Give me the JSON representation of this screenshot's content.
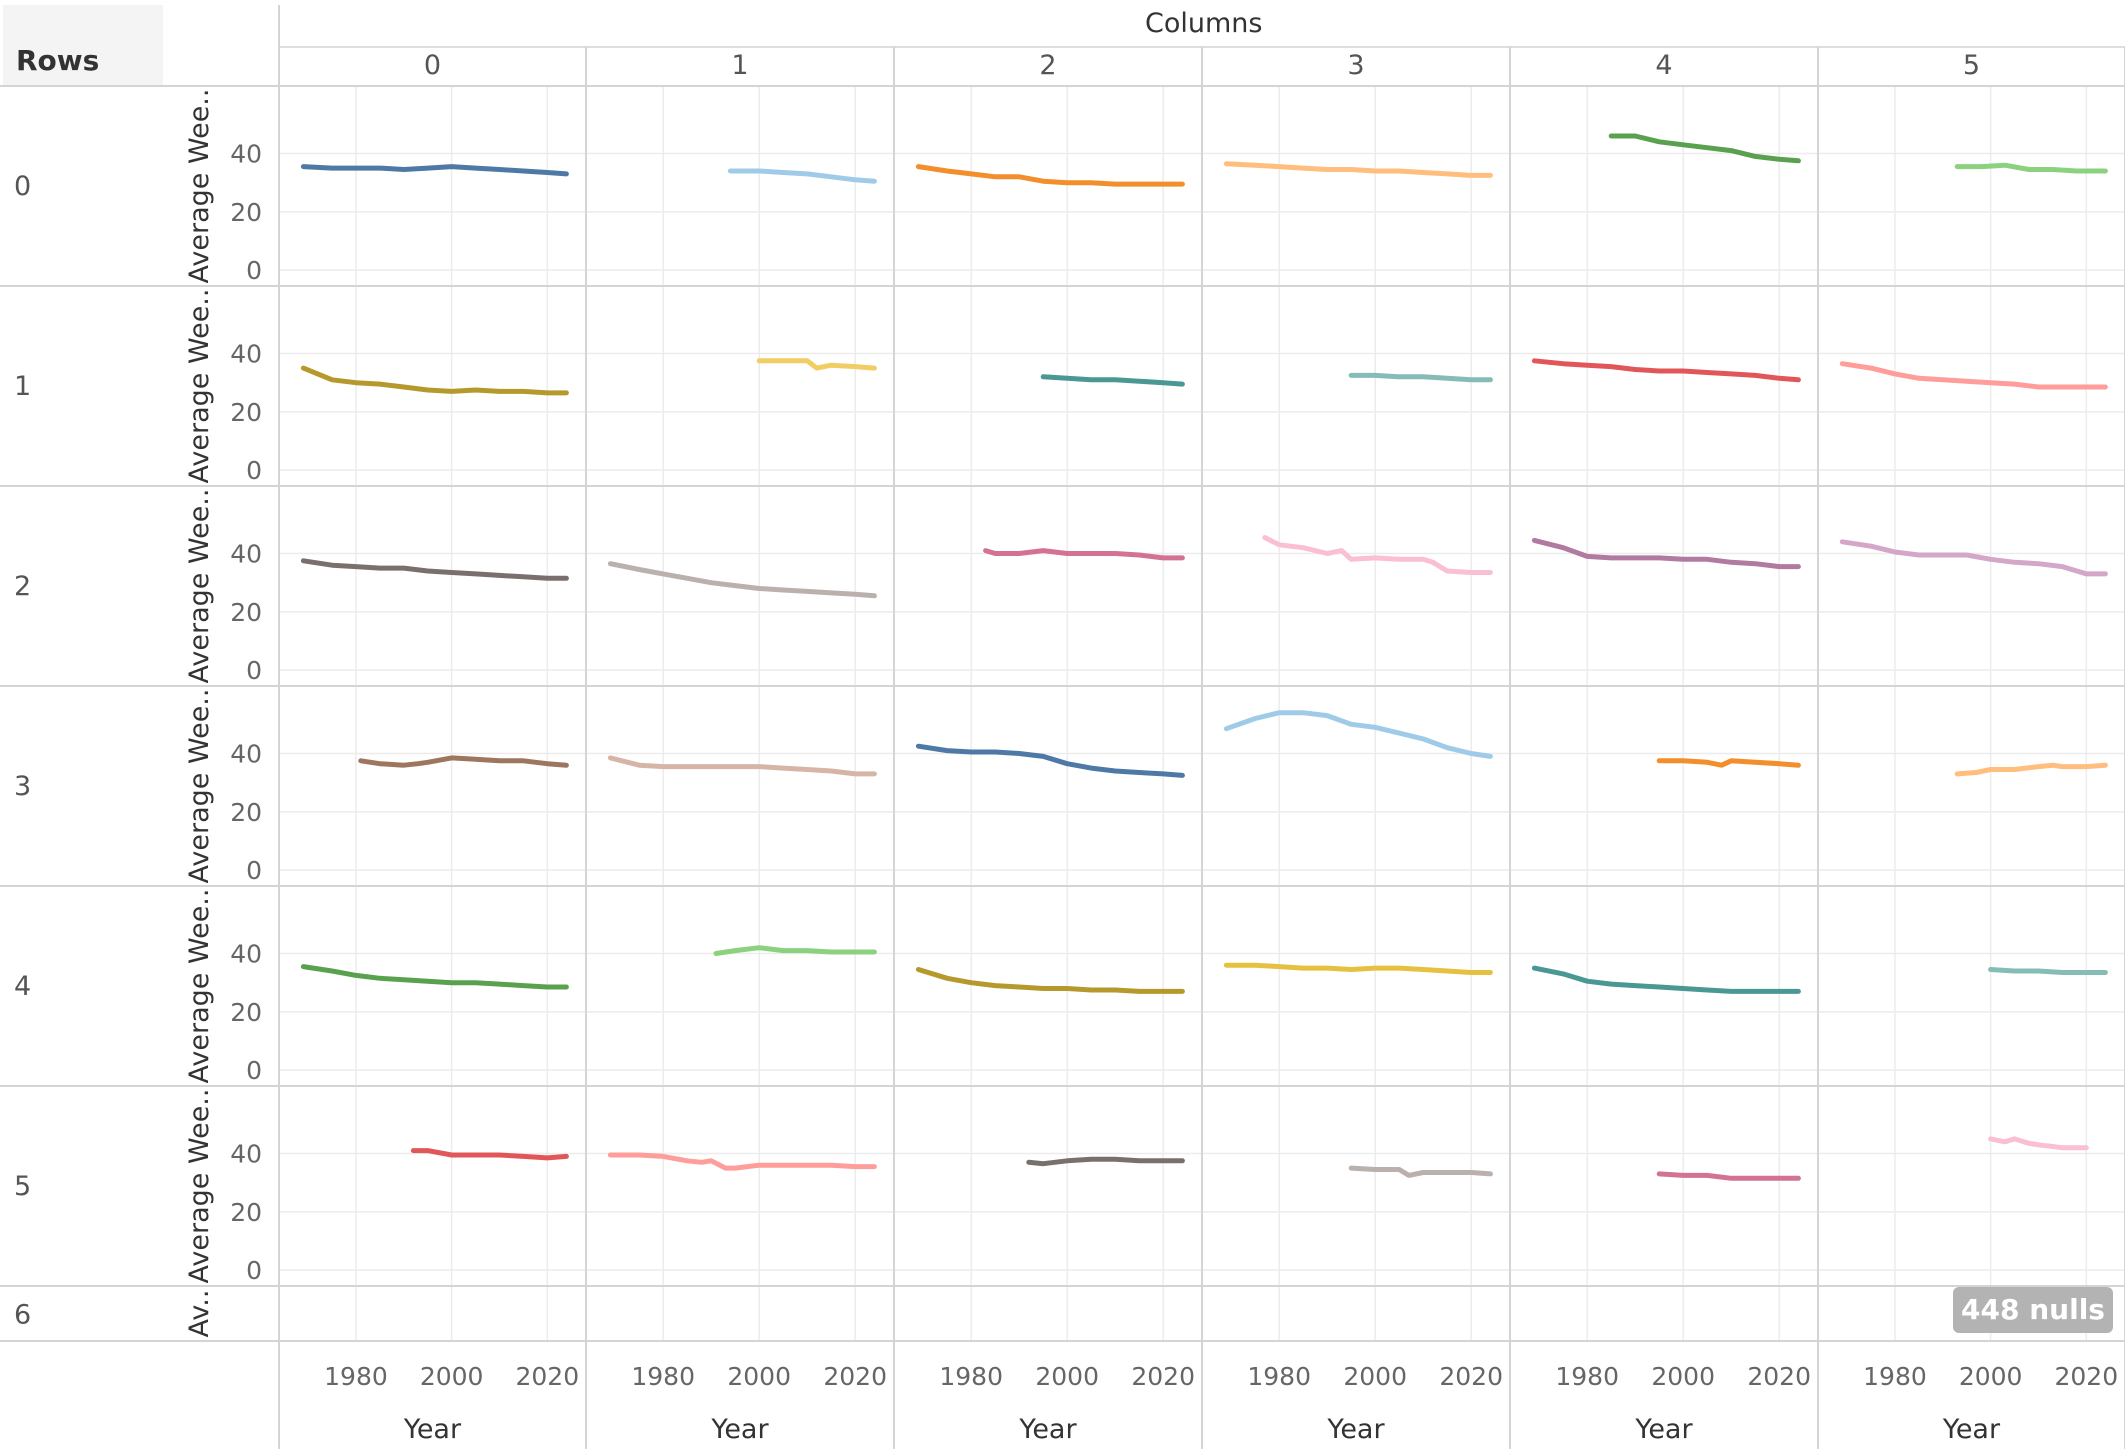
{
  "header": {
    "rows_label": "Rows",
    "columns_label": "Columns"
  },
  "nulls_indicator": "448 nulls",
  "chart_data": {
    "type": "line",
    "layout": "small-multiples",
    "row_labels": [
      "0",
      "1",
      "2",
      "3",
      "4",
      "5",
      "6"
    ],
    "column_labels": [
      "0",
      "1",
      "2",
      "3",
      "4",
      "5"
    ],
    "xlabel": "Year",
    "ylabel": "Average Wee..",
    "ylabel_truncated": "Av..",
    "xticks": [
      1980,
      2000,
      2020
    ],
    "xlim": [
      1966,
      2026
    ],
    "yticks": [
      0,
      20,
      40
    ],
    "ylim": [
      -2,
      58
    ],
    "grid": true,
    "panels": [
      {
        "row": 0,
        "col": 0,
        "color": "#4e79a7",
        "x": [
          1969,
          1975,
          1980,
          1985,
          1990,
          1995,
          2000,
          2005,
          2010,
          2015,
          2020,
          2024
        ],
        "y": [
          35.5,
          35,
          35,
          35,
          34.5,
          35,
          35.5,
          35,
          34.5,
          34,
          33.5,
          33
        ]
      },
      {
        "row": 0,
        "col": 1,
        "color": "#a0cbe8",
        "x": [
          1994,
          2000,
          2005,
          2010,
          2015,
          2020,
          2024
        ],
        "y": [
          34,
          34,
          33.5,
          33,
          32,
          31,
          30.5
        ]
      },
      {
        "row": 0,
        "col": 2,
        "color": "#f28e2b",
        "x": [
          1969,
          1975,
          1980,
          1985,
          1990,
          1995,
          2000,
          2005,
          2010,
          2015,
          2020,
          2024
        ],
        "y": [
          35.5,
          34,
          33,
          32,
          32,
          30.5,
          30,
          30,
          29.5,
          29.5,
          29.5,
          29.5
        ]
      },
      {
        "row": 0,
        "col": 3,
        "color": "#ffbe7d",
        "x": [
          1969,
          1975,
          1980,
          1985,
          1990,
          1995,
          2000,
          2005,
          2010,
          2015,
          2020,
          2024
        ],
        "y": [
          36.5,
          36,
          35.5,
          35,
          34.5,
          34.5,
          34,
          34,
          33.5,
          33,
          32.5,
          32.5
        ]
      },
      {
        "row": 0,
        "col": 4,
        "color": "#59a14f",
        "x": [
          1985,
          1990,
          1995,
          2000,
          2005,
          2010,
          2015,
          2020,
          2024
        ],
        "y": [
          46,
          46,
          44,
          43,
          42,
          41,
          39,
          38,
          37.5
        ]
      },
      {
        "row": 0,
        "col": 5,
        "color": "#8cd17d",
        "x": [
          1993,
          1998,
          2003,
          2008,
          2013,
          2018,
          2024
        ],
        "y": [
          35.5,
          35.5,
          36,
          34.5,
          34.5,
          34,
          34
        ]
      },
      {
        "row": 1,
        "col": 0,
        "color": "#b6992d",
        "x": [
          1969,
          1972,
          1975,
          1980,
          1985,
          1990,
          1995,
          2000,
          2005,
          2010,
          2015,
          2020,
          2024
        ],
        "y": [
          35,
          33,
          31,
          30,
          29.5,
          28.5,
          27.5,
          27,
          27.5,
          27,
          27,
          26.5,
          26.5
        ]
      },
      {
        "row": 1,
        "col": 1,
        "color": "#f1ce63",
        "x": [
          2000,
          2005,
          2010,
          2012,
          2015,
          2020,
          2024
        ],
        "y": [
          37.5,
          37.5,
          37.5,
          35,
          36,
          35.5,
          35
        ]
      },
      {
        "row": 1,
        "col": 2,
        "color": "#499894",
        "x": [
          1995,
          2000,
          2005,
          2010,
          2015,
          2020,
          2024
        ],
        "y": [
          32,
          31.5,
          31,
          31,
          30.5,
          30,
          29.5
        ]
      },
      {
        "row": 1,
        "col": 3,
        "color": "#86bcb6",
        "x": [
          1995,
          2000,
          2005,
          2010,
          2015,
          2020,
          2024
        ],
        "y": [
          32.5,
          32.5,
          32,
          32,
          31.5,
          31,
          31
        ]
      },
      {
        "row": 1,
        "col": 4,
        "color": "#e15759",
        "x": [
          1969,
          1975,
          1980,
          1985,
          1990,
          1995,
          2000,
          2005,
          2010,
          2015,
          2020,
          2024
        ],
        "y": [
          37.5,
          36.5,
          36,
          35.5,
          34.5,
          34,
          34,
          33.5,
          33,
          32.5,
          31.5,
          31
        ]
      },
      {
        "row": 1,
        "col": 5,
        "color": "#ff9d9a",
        "x": [
          1969,
          1975,
          1980,
          1985,
          1990,
          1995,
          2000,
          2005,
          2010,
          2015,
          2020,
          2024
        ],
        "y": [
          36.5,
          35,
          33,
          31.5,
          31,
          30.5,
          30,
          29.5,
          28.5,
          28.5,
          28.5,
          28.5
        ]
      },
      {
        "row": 2,
        "col": 0,
        "color": "#79706e",
        "x": [
          1969,
          1975,
          1980,
          1985,
          1990,
          1995,
          2000,
          2005,
          2010,
          2015,
          2020,
          2024
        ],
        "y": [
          37.5,
          36,
          35.5,
          35,
          35,
          34,
          33.5,
          33,
          32.5,
          32,
          31.5,
          31.5
        ]
      },
      {
        "row": 2,
        "col": 1,
        "color": "#bab0ac",
        "x": [
          1969,
          1975,
          1980,
          1985,
          1990,
          1995,
          2000,
          2005,
          2010,
          2015,
          2020,
          2024
        ],
        "y": [
          36.5,
          34.5,
          33,
          31.5,
          30,
          29,
          28,
          27.5,
          27,
          26.5,
          26,
          25.5
        ]
      },
      {
        "row": 2,
        "col": 2,
        "color": "#d37295",
        "x": [
          1983,
          1985,
          1990,
          1995,
          2000,
          2005,
          2010,
          2015,
          2020,
          2024
        ],
        "y": [
          41,
          40,
          40,
          41,
          40,
          40,
          40,
          39.5,
          38.5,
          38.5
        ]
      },
      {
        "row": 2,
        "col": 3,
        "color": "#fabfd2",
        "x": [
          1977,
          1980,
          1985,
          1990,
          1993,
          1995,
          2000,
          2005,
          2010,
          2012,
          2015,
          2020,
          2024
        ],
        "y": [
          45.5,
          43,
          42,
          40,
          41,
          38,
          38.5,
          38,
          38,
          37,
          34,
          33.5,
          33.5
        ]
      },
      {
        "row": 2,
        "col": 4,
        "color": "#b07aa1",
        "x": [
          1969,
          1975,
          1980,
          1985,
          1990,
          1995,
          2000,
          2005,
          2010,
          2015,
          2020,
          2024
        ],
        "y": [
          44.5,
          42,
          39,
          38.5,
          38.5,
          38.5,
          38,
          38,
          37,
          36.5,
          35.5,
          35.5
        ]
      },
      {
        "row": 2,
        "col": 5,
        "color": "#d4a6c8",
        "x": [
          1969,
          1975,
          1980,
          1985,
          1990,
          1995,
          2000,
          2005,
          2010,
          2015,
          2020,
          2024
        ],
        "y": [
          44,
          42.5,
          40.5,
          39.5,
          39.5,
          39.5,
          38,
          37,
          36.5,
          35.5,
          33,
          33
        ]
      },
      {
        "row": 3,
        "col": 0,
        "color": "#9d7660",
        "x": [
          1981,
          1985,
          1990,
          1993,
          1995,
          2000,
          2005,
          2010,
          2015,
          2020,
          2024
        ],
        "y": [
          37.5,
          36.5,
          36,
          36.5,
          37,
          38.5,
          38,
          37.5,
          37.5,
          36.5,
          36
        ]
      },
      {
        "row": 3,
        "col": 1,
        "color": "#d7b5a6",
        "x": [
          1969,
          1975,
          1980,
          1985,
          1990,
          1995,
          2000,
          2005,
          2010,
          2015,
          2020,
          2024
        ],
        "y": [
          38.5,
          36,
          35.5,
          35.5,
          35.5,
          35.5,
          35.5,
          35,
          34.5,
          34,
          33,
          33
        ]
      },
      {
        "row": 3,
        "col": 2,
        "color": "#4e79a7",
        "x": [
          1969,
          1975,
          1980,
          1985,
          1990,
          1995,
          2000,
          2005,
          2010,
          2015,
          2020,
          2024
        ],
        "y": [
          42.5,
          41,
          40.5,
          40.5,
          40,
          39,
          36.5,
          35,
          34,
          33.5,
          33,
          32.5
        ]
      },
      {
        "row": 3,
        "col": 3,
        "color": "#a0cbe8",
        "x": [
          1969,
          1975,
          1980,
          1985,
          1990,
          1995,
          2000,
          2005,
          2010,
          2015,
          2020,
          2024
        ],
        "y": [
          48.5,
          52,
          54,
          54,
          53,
          50,
          49,
          47,
          45,
          42,
          40,
          39
        ]
      },
      {
        "row": 3,
        "col": 4,
        "color": "#f28e2b",
        "x": [
          1995,
          2000,
          2005,
          2008,
          2010,
          2015,
          2020,
          2024
        ],
        "y": [
          37.5,
          37.5,
          37,
          36,
          37.5,
          37,
          36.5,
          36
        ]
      },
      {
        "row": 3,
        "col": 5,
        "color": "#ffbe7d",
        "x": [
          1993,
          1997,
          2000,
          2005,
          2010,
          2013,
          2015,
          2020,
          2024
        ],
        "y": [
          33,
          33.5,
          34.5,
          34.5,
          35.5,
          36,
          35.5,
          35.5,
          36
        ]
      },
      {
        "row": 4,
        "col": 0,
        "color": "#59a14f",
        "x": [
          1969,
          1975,
          1980,
          1985,
          1990,
          1995,
          2000,
          2005,
          2010,
          2015,
          2020,
          2024
        ],
        "y": [
          35.5,
          34,
          32.5,
          31.5,
          31,
          30.5,
          30,
          30,
          29.5,
          29,
          28.5,
          28.5
        ]
      },
      {
        "row": 4,
        "col": 1,
        "color": "#8cd17d",
        "x": [
          1991,
          1995,
          2000,
          2005,
          2010,
          2015,
          2020,
          2024
        ],
        "y": [
          40,
          41,
          42,
          41,
          41,
          40.5,
          40.5,
          40.5
        ]
      },
      {
        "row": 4,
        "col": 2,
        "color": "#b6992d",
        "x": [
          1969,
          1975,
          1980,
          1985,
          1990,
          1995,
          2000,
          2005,
          2010,
          2015,
          2020,
          2024
        ],
        "y": [
          34.5,
          31.5,
          30,
          29,
          28.5,
          28,
          28,
          27.5,
          27.5,
          27,
          27,
          27
        ]
      },
      {
        "row": 4,
        "col": 3,
        "color": "#e6c13f",
        "x": [
          1969,
          1975,
          1980,
          1985,
          1990,
          1995,
          2000,
          2005,
          2010,
          2015,
          2020,
          2024
        ],
        "y": [
          36,
          36,
          35.5,
          35,
          35,
          34.5,
          35,
          35,
          34.5,
          34,
          33.5,
          33.5
        ]
      },
      {
        "row": 4,
        "col": 4,
        "color": "#499894",
        "x": [
          1969,
          1975,
          1980,
          1985,
          1990,
          1995,
          2000,
          2005,
          2010,
          2015,
          2020,
          2024
        ],
        "y": [
          35,
          33,
          30.5,
          29.5,
          29,
          28.5,
          28,
          27.5,
          27,
          27,
          27,
          27
        ]
      },
      {
        "row": 4,
        "col": 5,
        "color": "#86bcb6",
        "x": [
          2000,
          2005,
          2010,
          2015,
          2020,
          2024
        ],
        "y": [
          34.5,
          34,
          34,
          33.5,
          33.5,
          33.5
        ]
      },
      {
        "row": 5,
        "col": 0,
        "color": "#e15759",
        "x": [
          1992,
          1995,
          2000,
          2005,
          2010,
          2015,
          2020,
          2024
        ],
        "y": [
          41,
          41,
          39.5,
          39.5,
          39.5,
          39,
          38.5,
          39
        ]
      },
      {
        "row": 5,
        "col": 1,
        "color": "#ff9d9a",
        "x": [
          1969,
          1975,
          1980,
          1985,
          1988,
          1990,
          1993,
          1995,
          2000,
          2005,
          2010,
          2015,
          2020,
          2024
        ],
        "y": [
          39.5,
          39.5,
          39,
          37.5,
          37,
          37.5,
          35,
          35,
          36,
          36,
          36,
          36,
          35.5,
          35.5
        ]
      },
      {
        "row": 5,
        "col": 2,
        "color": "#79706e",
        "x": [
          1992,
          1995,
          2000,
          2005,
          2010,
          2015,
          2020,
          2024
        ],
        "y": [
          37,
          36.5,
          37.5,
          38,
          38,
          37.5,
          37.5,
          37.5
        ]
      },
      {
        "row": 5,
        "col": 3,
        "color": "#bab0ac",
        "x": [
          1995,
          2000,
          2005,
          2007,
          2010,
          2015,
          2020,
          2024
        ],
        "y": [
          35,
          34.5,
          34.5,
          32.5,
          33.5,
          33.5,
          33.5,
          33
        ]
      },
      {
        "row": 5,
        "col": 4,
        "color": "#d37295",
        "x": [
          1995,
          2000,
          2005,
          2010,
          2015,
          2020,
          2024
        ],
        "y": [
          33,
          32.5,
          32.5,
          31.5,
          31.5,
          31.5,
          31.5
        ]
      },
      {
        "row": 5,
        "col": 5,
        "color": "#fabfd2",
        "x": [
          2000,
          2003,
          2005,
          2008,
          2010,
          2015,
          2020
        ],
        "y": [
          45,
          44,
          45,
          43.5,
          43,
          42,
          42
        ]
      }
    ]
  }
}
